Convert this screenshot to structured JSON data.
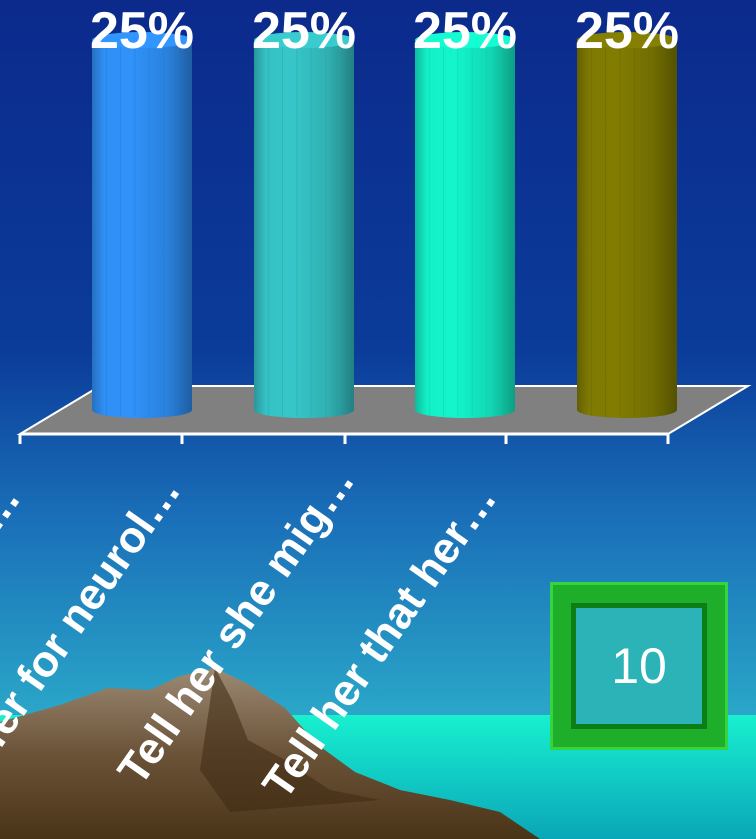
{
  "chart_data": {
    "type": "bar",
    "style": "3d-cylinder",
    "categories": [
      "…",
      "…efer for neurol…",
      "Tell her she mig…",
      "Tell her that her…"
    ],
    "values": [
      25,
      25,
      25,
      25
    ],
    "value_labels": [
      "25%",
      "25%",
      "25%",
      "25%"
    ],
    "colors": [
      "#2f8ff5",
      "#35c2c5",
      "#13f0c8",
      "#7f7a02"
    ],
    "ylim": [
      0,
      25
    ],
    "grid": false,
    "legend": "none"
  },
  "timer": {
    "value": "10"
  },
  "colors": {
    "sky_top": "#0a2a8e",
    "sky_bottom": "#2aa6c8",
    "sea": "#10e8c8",
    "floor": "#808080"
  }
}
